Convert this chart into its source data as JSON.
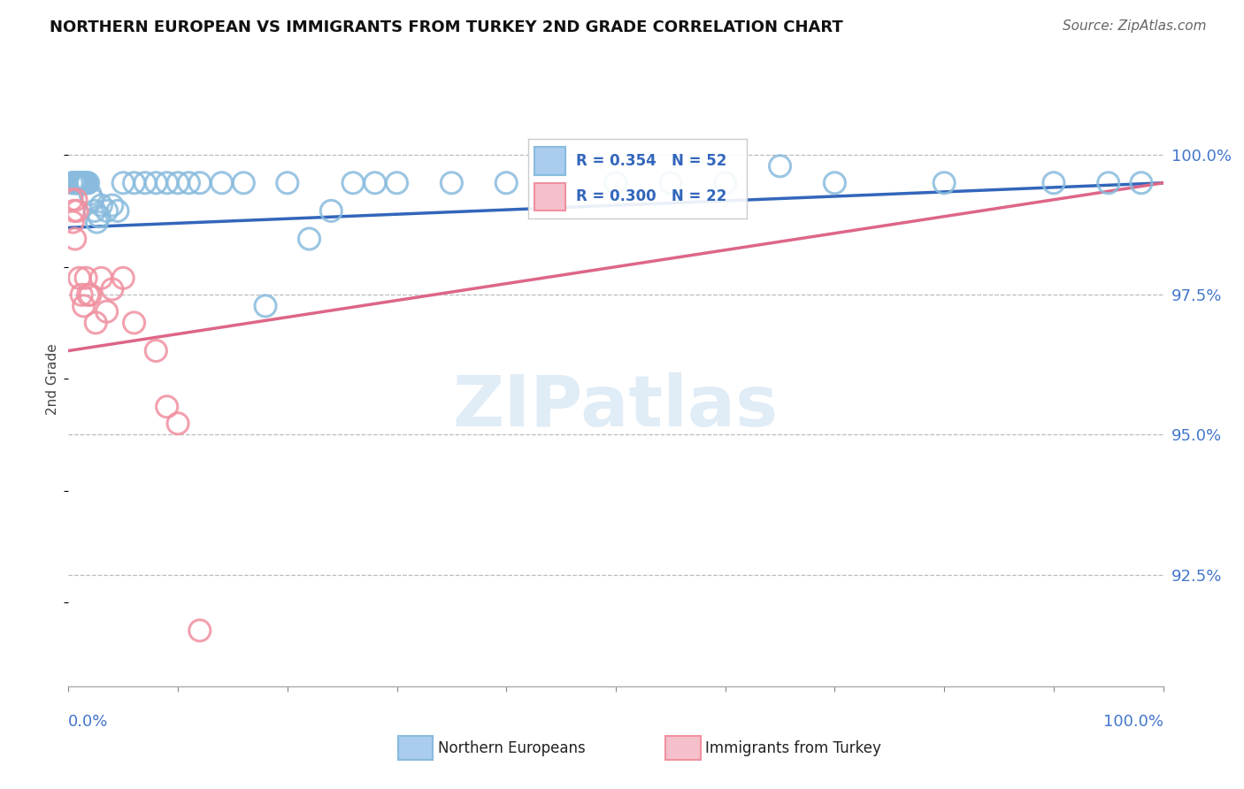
{
  "title": "NORTHERN EUROPEAN VS IMMIGRANTS FROM TURKEY 2ND GRADE CORRELATION CHART",
  "source": "Source: ZipAtlas.com",
  "ylabel": "2nd Grade",
  "xlim": [
    0.0,
    100.0
  ],
  "ylim": [
    90.5,
    101.5
  ],
  "yticks": [
    92.5,
    95.0,
    97.5,
    100.0
  ],
  "ytick_labels": [
    "92.5%",
    "95.0%",
    "97.5%",
    "100.0%"
  ],
  "watermark_text": "ZIPatlas",
  "blue_color": "#88bbdd",
  "pink_color": "#f090a0",
  "blue_line_color": "#3366bb",
  "pink_line_color": "#dd6688",
  "blue_label": "R = 0.354   N = 52",
  "pink_label": "R = 0.300   N = 22",
  "legend_text_color": "#3366bb",
  "right_tick_color": "#4477cc",
  "blue_scatter_x": [
    0.3,
    0.5,
    0.6,
    0.7,
    0.8,
    0.9,
    1.0,
    1.1,
    1.2,
    1.3,
    1.4,
    1.5,
    1.6,
    1.7,
    1.8,
    2.0,
    2.2,
    2.4,
    2.6,
    2.8,
    3.0,
    3.5,
    4.0,
    4.5,
    5.0,
    6.0,
    7.0,
    8.0,
    9.0,
    10.0,
    11.0,
    12.0,
    14.0,
    16.0,
    18.0,
    20.0,
    22.0,
    24.0,
    26.0,
    28.0,
    30.0,
    35.0,
    40.0,
    50.0,
    55.0,
    60.0,
    65.0,
    70.0,
    80.0,
    90.0,
    95.0,
    98.0
  ],
  "blue_scatter_y": [
    99.5,
    99.5,
    99.5,
    99.5,
    99.5,
    99.5,
    99.5,
    99.5,
    99.5,
    99.5,
    99.5,
    99.5,
    99.5,
    99.5,
    99.5,
    99.3,
    99.2,
    99.0,
    98.8,
    98.9,
    99.1,
    99.0,
    99.1,
    99.0,
    99.5,
    99.5,
    99.5,
    99.5,
    99.5,
    99.5,
    99.5,
    99.5,
    99.5,
    99.5,
    97.3,
    99.5,
    98.5,
    99.0,
    99.5,
    99.5,
    99.5,
    99.5,
    99.5,
    99.5,
    99.5,
    99.5,
    99.8,
    99.5,
    99.5,
    99.5,
    99.5,
    99.5
  ],
  "pink_scatter_x": [
    0.3,
    0.4,
    0.5,
    0.6,
    0.7,
    0.8,
    1.0,
    1.2,
    1.4,
    1.6,
    1.8,
    2.0,
    2.5,
    3.0,
    3.5,
    4.0,
    5.0,
    6.0,
    8.0,
    9.0,
    10.0,
    12.0
  ],
  "pink_scatter_y": [
    99.2,
    98.8,
    99.0,
    98.5,
    99.2,
    99.0,
    97.8,
    97.5,
    97.3,
    97.8,
    97.5,
    97.5,
    97.0,
    97.8,
    97.2,
    97.6,
    97.8,
    97.0,
    96.5,
    95.5,
    95.2,
    91.5
  ],
  "blue_trend_x0": 0.0,
  "blue_trend_x1": 100.0,
  "blue_trend_y0": 98.7,
  "blue_trend_y1": 99.5,
  "pink_trend_x0": 0.0,
  "pink_trend_x1": 100.0,
  "pink_trend_y0": 96.5,
  "pink_trend_y1": 99.5,
  "background_color": "#ffffff",
  "grid_color": "#bbbbbb",
  "axis_color": "#aaaaaa"
}
